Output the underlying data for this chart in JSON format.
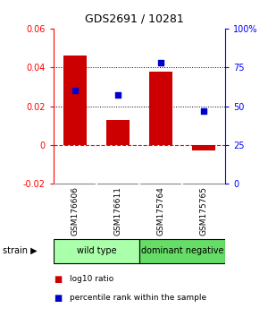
{
  "title": "GDS2691 / 10281",
  "samples": [
    "GSM176606",
    "GSM176611",
    "GSM175764",
    "GSM175765"
  ],
  "log10_ratio": [
    0.046,
    0.013,
    0.038,
    -0.003
  ],
  "percentile_rank": [
    0.6,
    0.57,
    0.78,
    0.47
  ],
  "groups": [
    {
      "name": "wild type",
      "samples": [
        0,
        1
      ],
      "color": "#aaffaa"
    },
    {
      "name": "dominant negative",
      "samples": [
        2,
        3
      ],
      "color": "#66dd66"
    }
  ],
  "bar_color": "#CC0000",
  "dot_color": "#0000CC",
  "ylim_left": [
    -0.02,
    0.06
  ],
  "ylim_right": [
    0.0,
    1.0
  ],
  "yticks_left": [
    -0.02,
    0.0,
    0.02,
    0.04,
    0.06
  ],
  "yticks_right": [
    0.0,
    0.25,
    0.5,
    0.75,
    1.0
  ],
  "ytick_labels_left": [
    "-0.02",
    "0",
    "0.02",
    "0.04",
    "0.06"
  ],
  "ytick_labels_right": [
    "0",
    "25",
    "50",
    "75",
    "100%"
  ],
  "hlines": [
    0.02,
    0.04
  ],
  "zero_line_y": 0.0,
  "background_color": "#ffffff",
  "sample_box_color": "#cccccc"
}
